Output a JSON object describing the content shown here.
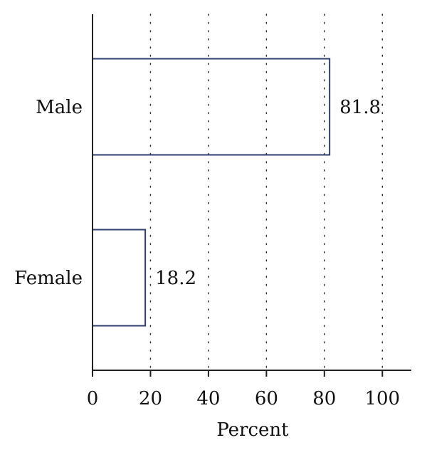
{
  "chart_data": {
    "type": "bar",
    "orientation": "horizontal",
    "categories": [
      "Male",
      "Female"
    ],
    "values": [
      81.8,
      18.2
    ],
    "value_labels": [
      "81.8",
      "18.2"
    ],
    "xlabel": "Percent",
    "ylabel": "",
    "title": "",
    "xlim": [
      0,
      110
    ],
    "xticks": [
      0,
      20,
      40,
      60,
      80,
      100
    ],
    "xtick_labels": [
      "0",
      "20",
      "40",
      "60",
      "80",
      "100"
    ],
    "grid": "vertical dotted",
    "bar_fill": "none",
    "bar_color": "#2f3f6e",
    "axis_color": "#222222",
    "grid_color": "#333333"
  }
}
